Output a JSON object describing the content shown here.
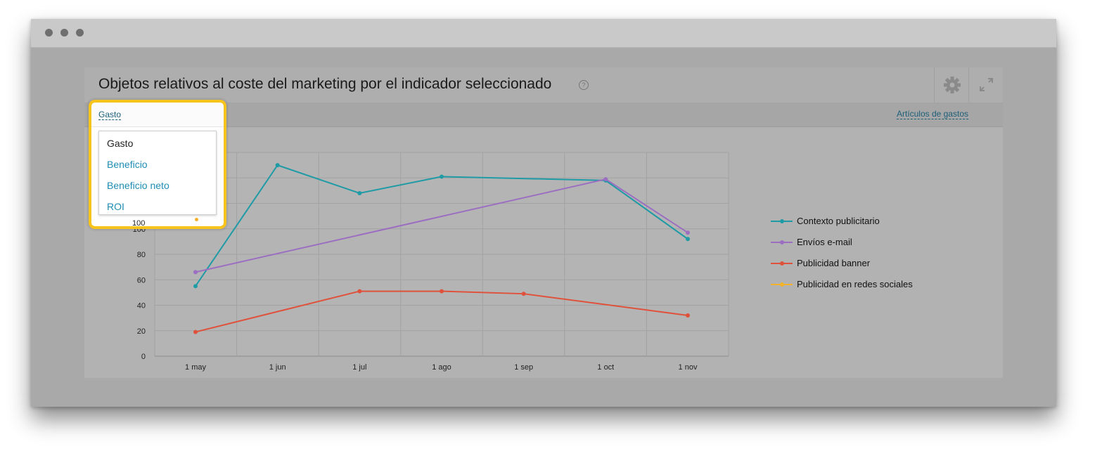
{
  "panel": {
    "title": "Objetos relativos al coste del marketing por el indicador seleccionado",
    "help_icon": "question-circle-icon",
    "settings_icon": "gear-icon",
    "expand_icon": "expand-icon"
  },
  "toolbar": {
    "metric_link": "Gasto",
    "articles_link": "Artículos de gastos"
  },
  "dropdown": {
    "options": [
      "Gasto",
      "Beneficio",
      "Beneficio neto",
      "ROI"
    ],
    "selected": "Gasto"
  },
  "chart_data": {
    "type": "line",
    "categories": [
      "1 may",
      "1 jun",
      "1 jul",
      "1 ago",
      "1 sep",
      "1 oct",
      "1 nov"
    ],
    "y_ticks": [
      "0",
      "20",
      "40",
      "60",
      "80",
      "100"
    ],
    "ylim": [
      0,
      160
    ],
    "grid": true,
    "legend_position": "right",
    "series": [
      {
        "name": "Contexto publicitario",
        "color": "#1f9ba6",
        "values": [
          55,
          150,
          128,
          141,
          null,
          138,
          92
        ]
      },
      {
        "name": "Envíos e-mail",
        "color": "#9c6ec2",
        "values": [
          66,
          null,
          null,
          null,
          null,
          139,
          97
        ]
      },
      {
        "name": "Publicidad banner",
        "color": "#e0513b",
        "values": [
          19,
          null,
          51,
          51,
          49,
          null,
          32
        ]
      },
      {
        "name": "Publicidad en redes sociales",
        "color": "#f2b22b",
        "values": [
          102,
          null,
          null,
          null,
          null,
          null,
          null
        ]
      }
    ]
  }
}
